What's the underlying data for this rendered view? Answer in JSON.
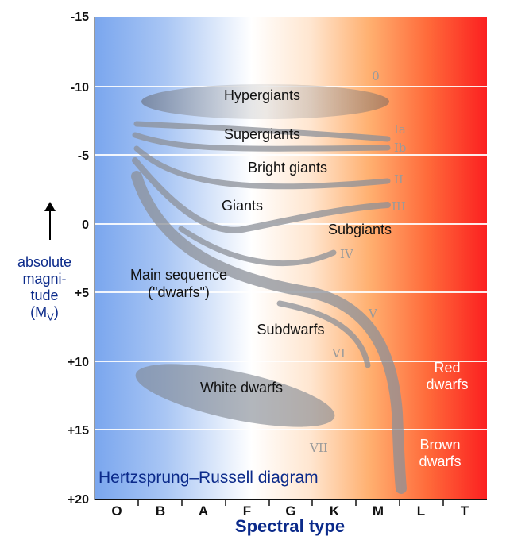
{
  "diagram": {
    "title": "Hertzsprung–Russell diagram",
    "x_axis_label": "Spectral type",
    "y_axis_label": {
      "line1": "absolute",
      "line2": "magni-",
      "line3": "tude",
      "line4_main": "(M",
      "line4_sub": "V",
      "line4_end": ")"
    },
    "y_ticks": [
      "-15",
      "-10",
      "-5",
      "0",
      "+5",
      "+10",
      "+15",
      "+20"
    ],
    "x_ticks": [
      "O",
      "B",
      "A",
      "F",
      "G",
      "K",
      "M",
      "L",
      "T"
    ],
    "regions": {
      "hypergiants": "Hypergiants",
      "supergiants": "Supergiants",
      "bright_giants": "Bright giants",
      "giants": "Giants",
      "subgiants": "Subgiants",
      "main_sequence_1": "Main sequence",
      "main_sequence_2": "(\"dwarfs\")",
      "subdwarfs": "Subdwarfs",
      "white_dwarfs": "White dwarfs",
      "red_dwarfs_1": "Red",
      "red_dwarfs_2": "dwarfs",
      "brown_dwarfs_1": "Brown",
      "brown_dwarfs_2": "dwarfs"
    },
    "luminosity_classes": {
      "c0": "0",
      "ia": "Ia",
      "ib": "Ib",
      "ii": "II",
      "iii": "III",
      "iv": "IV",
      "v": "V",
      "vi": "VI",
      "vii": "VII"
    },
    "colors": {
      "hot_blue": "#7aa6ee",
      "neutral": "#ffffff",
      "warm_orange": "#ffb070",
      "cool_red": "#fb2020",
      "band": "#8c9098",
      "title_color": "#0b2a8a"
    }
  }
}
